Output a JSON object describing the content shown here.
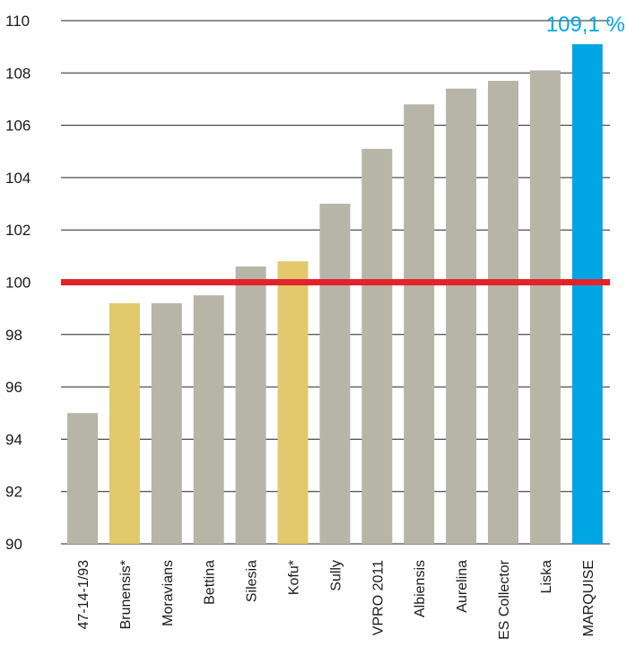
{
  "chart_data": {
    "type": "bar",
    "categories": [
      "47-14-1/93",
      "Brunensis*",
      "Moravians",
      "Bettina",
      "Silesia",
      "Kofu*",
      "Sully",
      "VPRO 2011",
      "Albiensis",
      "Aurelina",
      "ES Collector",
      "Liska",
      "MARQUISE"
    ],
    "values": [
      95.0,
      99.2,
      99.2,
      99.5,
      100.6,
      100.8,
      103.0,
      105.1,
      106.8,
      107.4,
      107.7,
      108.1,
      109.1
    ],
    "bar_colors": [
      "#b6b5a8",
      "#e2c96b",
      "#b6b5a8",
      "#b6b5a8",
      "#b6b5a8",
      "#e2c96b",
      "#b6b5a8",
      "#b6b5a8",
      "#b6b5a8",
      "#b6b5a8",
      "#b6b5a8",
      "#b6b5a8",
      "#00a6e4"
    ],
    "yticks": [
      "90",
      "92",
      "94",
      "96",
      "98",
      "100",
      "102",
      "104",
      "106",
      "108",
      "110"
    ],
    "ylim": [
      90,
      110
    ],
    "reference_line": {
      "value": 100,
      "color": "#e3232b"
    },
    "highlight_label": {
      "category": "MARQUISE",
      "text": "109,1 %",
      "color": "#00a6e4"
    },
    "grid": true,
    "grid_color": "#222222"
  }
}
